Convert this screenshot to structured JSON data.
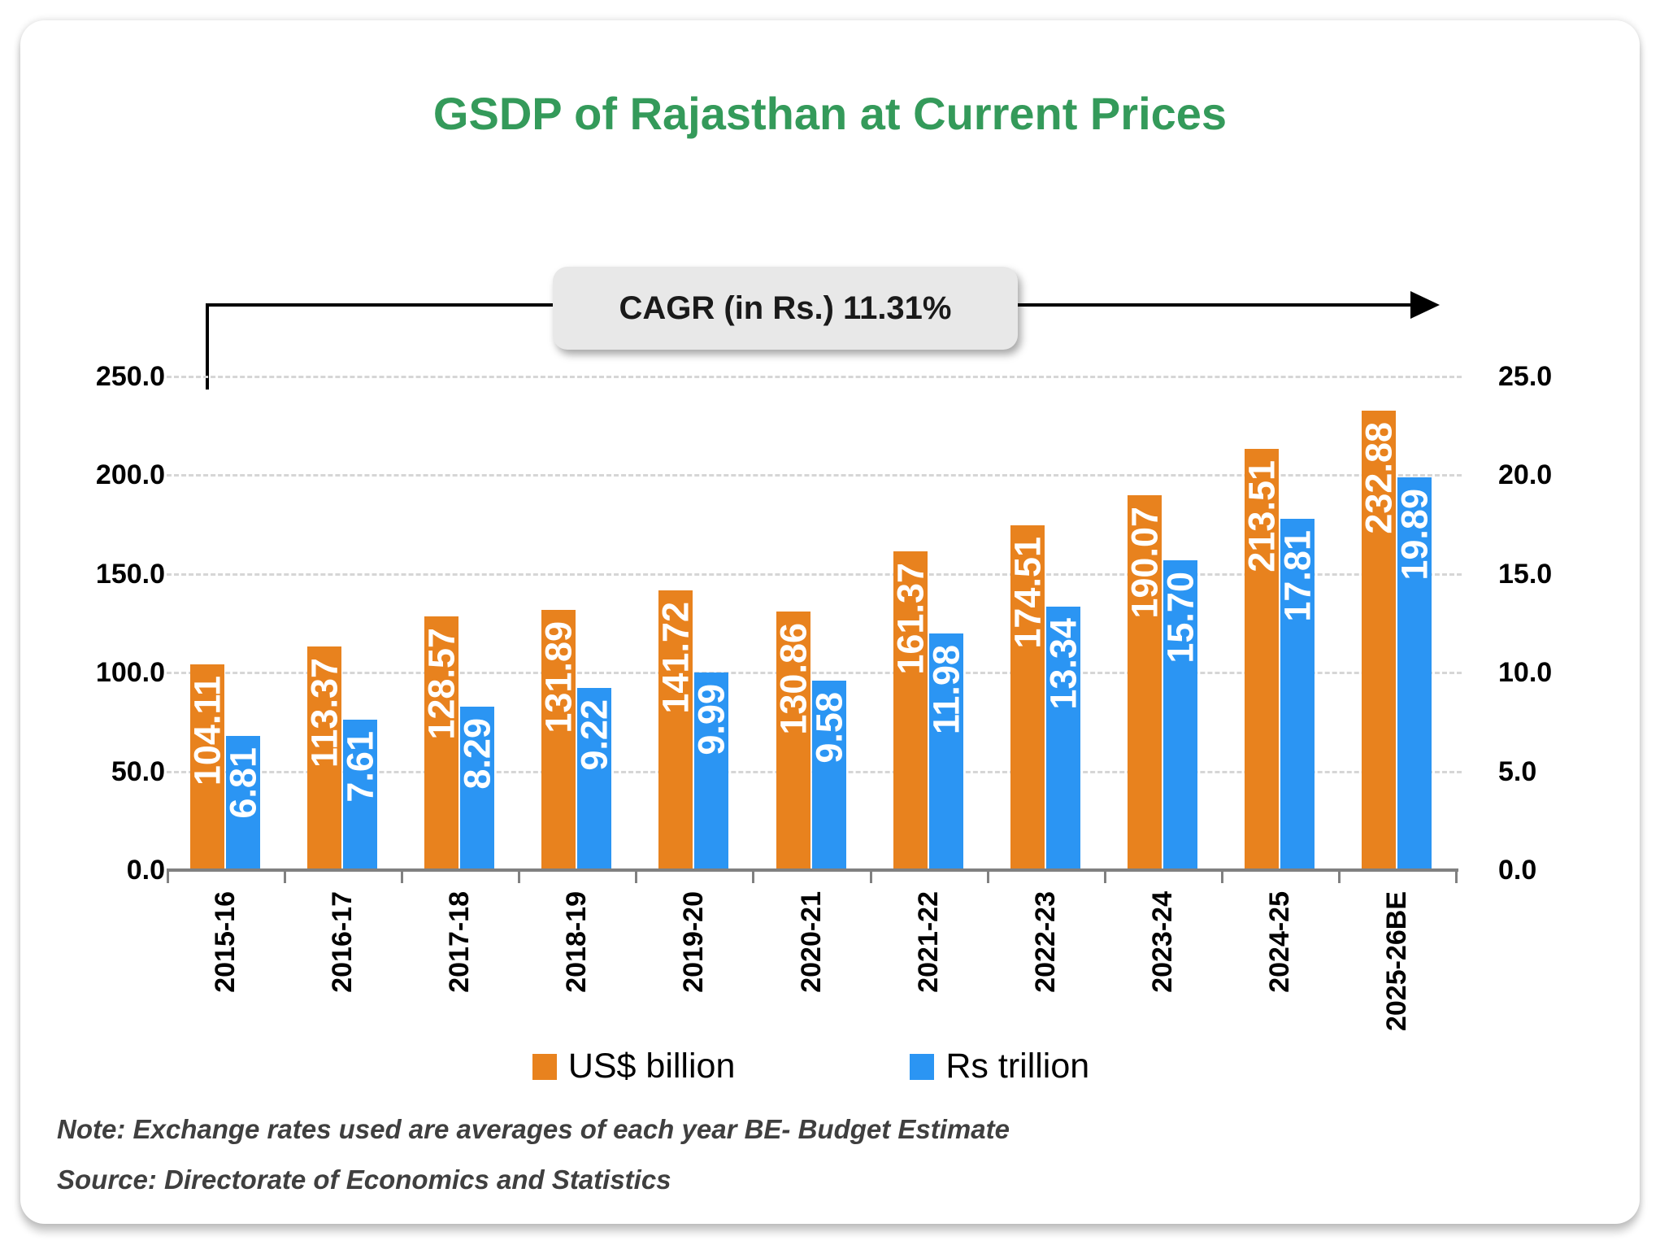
{
  "title": "GSDP of Rajasthan at Current Prices",
  "annotation": {
    "label": "CAGR (in Rs.) 11.31%"
  },
  "legend": {
    "items": [
      {
        "label": "US$ billion",
        "color": "#E8821E"
      },
      {
        "label": "Rs trillion",
        "color": "#2B95F3"
      }
    ]
  },
  "notes": {
    "note": "Note: Exchange rates used are averages of each year BE- Budget Estimate",
    "source": "Source: Directorate of Economics and Statistics"
  },
  "chart_data": {
    "type": "bar",
    "categories": [
      "2015-16",
      "2016-17",
      "2017-18",
      "2018-19",
      "2019-20",
      "2020-21",
      "2021-22",
      "2022-23",
      "2023-24",
      "2024-25",
      "2025-26BE"
    ],
    "series": [
      {
        "name": "US$ billion",
        "axis": "left",
        "color": "#E8821E",
        "values": [
          104.11,
          113.37,
          128.57,
          131.89,
          141.72,
          130.86,
          161.37,
          174.51,
          190.07,
          213.51,
          232.88
        ]
      },
      {
        "name": "Rs trillion",
        "axis": "right",
        "color": "#2B95F3",
        "values": [
          6.81,
          7.61,
          8.29,
          9.22,
          9.99,
          9.58,
          11.98,
          13.34,
          15.7,
          17.81,
          19.89
        ]
      }
    ],
    "left_axis": {
      "min": 0,
      "max": 250,
      "ticks": [
        "0.0",
        "50.0",
        "100.0",
        "150.0",
        "200.0",
        "250.0"
      ]
    },
    "right_axis": {
      "min": 0,
      "max": 25,
      "ticks": [
        "0.0",
        "5.0",
        "10.0",
        "15.0",
        "20.0",
        "25.0"
      ]
    },
    "grid": true,
    "legend_position": "bottom",
    "value_label_decimals": 2,
    "annotation": "CAGR (in Rs.) 11.31%"
  }
}
